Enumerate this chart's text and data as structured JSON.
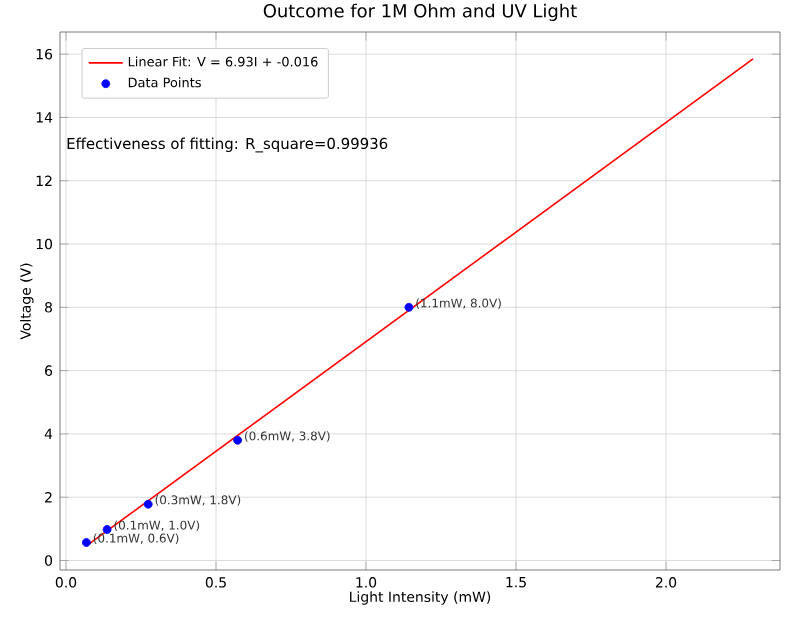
{
  "chart_data": {
    "type": "scatter",
    "title": "Outcome for 1M Ohm and UV Light",
    "xlabel": "Light Intensity (mW)",
    "ylabel": "Voltage (V)",
    "series": [
      {
        "name": "Linear Fit: V = 6.93I + -0.016",
        "type": "line",
        "color": "#ff0000",
        "x": [
          0.068,
          2.29
        ],
        "values": [
          0.46,
          15.85
        ],
        "marker": "none"
      },
      {
        "name": "Data Points",
        "color": "#0000ff",
        "x": [
          0.068,
          0.137,
          0.274,
          0.572,
          1.143
        ],
        "values": [
          0.57,
          0.98,
          1.78,
          3.8,
          8.0
        ],
        "marker": "circle"
      }
    ],
    "xlim": [
      -0.02,
      2.38
    ],
    "ylim": [
      -0.3,
      16.7
    ],
    "xticks": [
      {
        "value": 0,
        "label": "0.0"
      },
      0.5,
      {
        "value": 1,
        "label": "1.0"
      },
      1.5,
      {
        "value": 2,
        "label": "2.0"
      }
    ],
    "yticks": [
      0,
      2,
      4,
      6,
      8,
      10,
      12,
      14,
      16
    ],
    "grid": true,
    "legend": "top left",
    "annotations": [
      "Effectiveness of fitting: R_square=0.99936",
      {
        "text": "(0.1mW, 0.6V)",
        "x": 0.068,
        "y": 0.57
      },
      {
        "text": "(0.1mW, 1.0V)",
        "x": 0.137,
        "y": 0.98
      },
      {
        "text": "(0.3mW, 1.8V)",
        "x": 0.274,
        "y": 1.78
      },
      {
        "text": "(0.6mW, 3.8V)",
        "x": 0.572,
        "y": 3.8
      },
      {
        "text": "(1.1mW, 8.0V)",
        "x": 1.143,
        "y": 8.0
      }
    ]
  }
}
